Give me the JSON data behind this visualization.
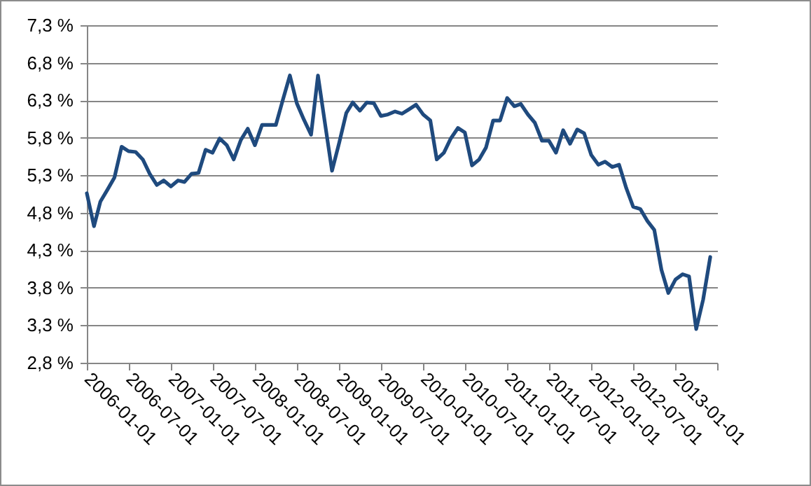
{
  "chart_data": {
    "type": "line",
    "x": [
      "2006-01",
      "2006-02",
      "2006-03",
      "2006-04",
      "2006-05",
      "2006-06",
      "2006-07",
      "2006-08",
      "2006-09",
      "2006-10",
      "2006-11",
      "2006-12",
      "2007-01",
      "2007-02",
      "2007-03",
      "2007-04",
      "2007-05",
      "2007-06",
      "2007-07",
      "2007-08",
      "2007-09",
      "2007-10",
      "2007-11",
      "2007-12",
      "2008-01",
      "2008-02",
      "2008-03",
      "2008-04",
      "2008-05",
      "2008-06",
      "2008-07",
      "2008-08",
      "2008-09",
      "2008-10",
      "2008-11",
      "2008-12",
      "2009-01",
      "2009-02",
      "2009-03",
      "2009-04",
      "2009-05",
      "2009-06",
      "2009-07",
      "2009-08",
      "2009-09",
      "2009-10",
      "2009-11",
      "2009-12",
      "2010-01",
      "2010-02",
      "2010-03",
      "2010-04",
      "2010-05",
      "2010-06",
      "2010-07",
      "2010-08",
      "2010-09",
      "2010-10",
      "2010-11",
      "2010-12",
      "2011-01",
      "2011-02",
      "2011-03",
      "2011-04",
      "2011-05",
      "2011-06",
      "2011-07",
      "2011-08",
      "2011-09",
      "2011-10",
      "2011-11",
      "2011-12",
      "2012-01",
      "2012-02",
      "2012-03",
      "2012-04",
      "2012-05",
      "2012-06",
      "2012-07",
      "2012-08",
      "2012-09",
      "2012-10",
      "2012-11",
      "2012-12",
      "2013-01",
      "2013-02",
      "2013-03",
      "2013-04",
      "2013-05",
      "2013-06"
    ],
    "series": [
      {
        "color": "#1f4a7e",
        "values": [
          5.06,
          4.62,
          4.95,
          5.11,
          5.27,
          5.68,
          5.62,
          5.61,
          5.51,
          5.32,
          5.17,
          5.23,
          5.15,
          5.23,
          5.21,
          5.32,
          5.33,
          5.64,
          5.6,
          5.79,
          5.7,
          5.51,
          5.77,
          5.92,
          5.7,
          5.97,
          5.97,
          5.97,
          6.3,
          6.63,
          6.26,
          6.04,
          5.84,
          6.63,
          5.98,
          5.36,
          5.73,
          6.13,
          6.27,
          6.16,
          6.27,
          6.26,
          6.09,
          6.11,
          6.15,
          6.12,
          6.18,
          6.24,
          6.11,
          6.03,
          5.51,
          5.6,
          5.79,
          5.93,
          5.87,
          5.43,
          5.51,
          5.67,
          6.03,
          6.03,
          6.33,
          6.22,
          6.25,
          6.11,
          6.0,
          5.76,
          5.76,
          5.6,
          5.9,
          5.72,
          5.91,
          5.86,
          5.57,
          5.44,
          5.48,
          5.41,
          5.44,
          5.13,
          4.88,
          4.85,
          4.69,
          4.57,
          4.04,
          3.73,
          3.91,
          3.98,
          3.95,
          3.25,
          3.64,
          4.21
        ]
      }
    ],
    "xlim": [
      "2006-01-01",
      "2013-07-01"
    ],
    "xticks": [
      "2006-01-01",
      "2006-07-01",
      "2007-01-01",
      "2007-07-01",
      "2008-01-01",
      "2008-07-01",
      "2009-01-01",
      "2009-07-01",
      "2010-01-01",
      "2010-07-01",
      "2011-01-01",
      "2011-07-01",
      "2012-01-01",
      "2012-07-01",
      "2013-01-01",
      {
        "value": "2013-07-01",
        "label": null
      }
    ],
    "ylim": [
      2.8,
      7.3
    ],
    "yticks": [
      {
        "value": 2.8,
        "label": "2,8 %"
      },
      {
        "value": 3.3,
        "label": "3,3 %"
      },
      {
        "value": 3.8,
        "label": "3,8 %"
      },
      {
        "value": 4.3,
        "label": "4,3 %"
      },
      {
        "value": 4.8,
        "label": "4,8 %"
      },
      {
        "value": 5.3,
        "label": "5,3 %"
      },
      {
        "value": 5.8,
        "label": "5,8 %"
      },
      {
        "value": 6.3,
        "label": "6,3 %"
      },
      {
        "value": 6.8,
        "label": "6,8 %"
      },
      {
        "value": 7.3,
        "label": "7,3 %"
      }
    ],
    "grid": "y",
    "marker": "none",
    "line_style": "solid"
  }
}
